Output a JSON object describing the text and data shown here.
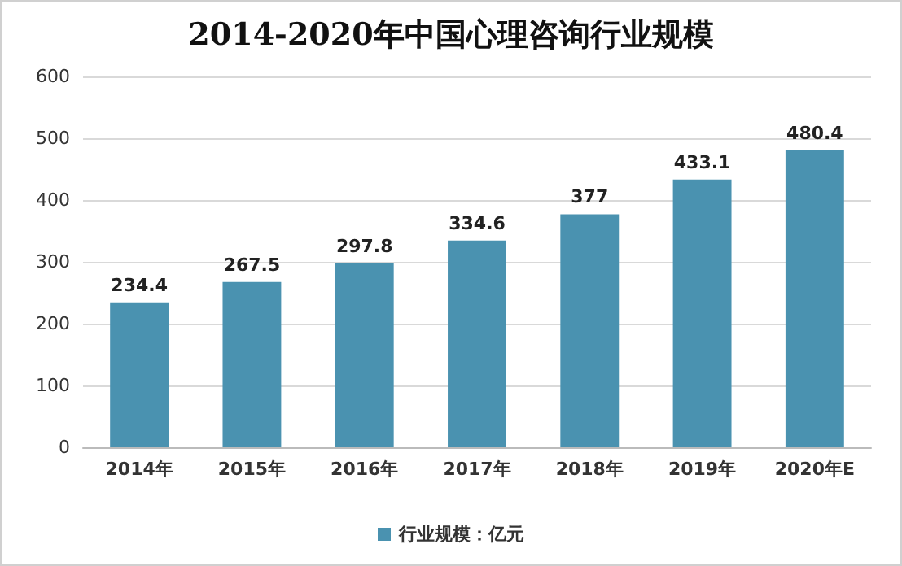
{
  "chart_data": {
    "type": "bar",
    "title": "2014-2020年中国心理咨询行业规模",
    "categories": [
      "2014年",
      "2015年",
      "2016年",
      "2017年",
      "2018年",
      "2019年",
      "2020年E"
    ],
    "series": [
      {
        "name": "行业规模：亿元",
        "color": "#4a92b0",
        "values": [
          234.4,
          267.5,
          297.8,
          334.6,
          377,
          433.1,
          480.4
        ]
      }
    ],
    "ylim": [
      0,
      600
    ],
    "yticks": [
      0,
      100,
      200,
      300,
      400,
      500,
      600
    ],
    "grid": "y",
    "legend": "bottom",
    "data_labels": true
  }
}
